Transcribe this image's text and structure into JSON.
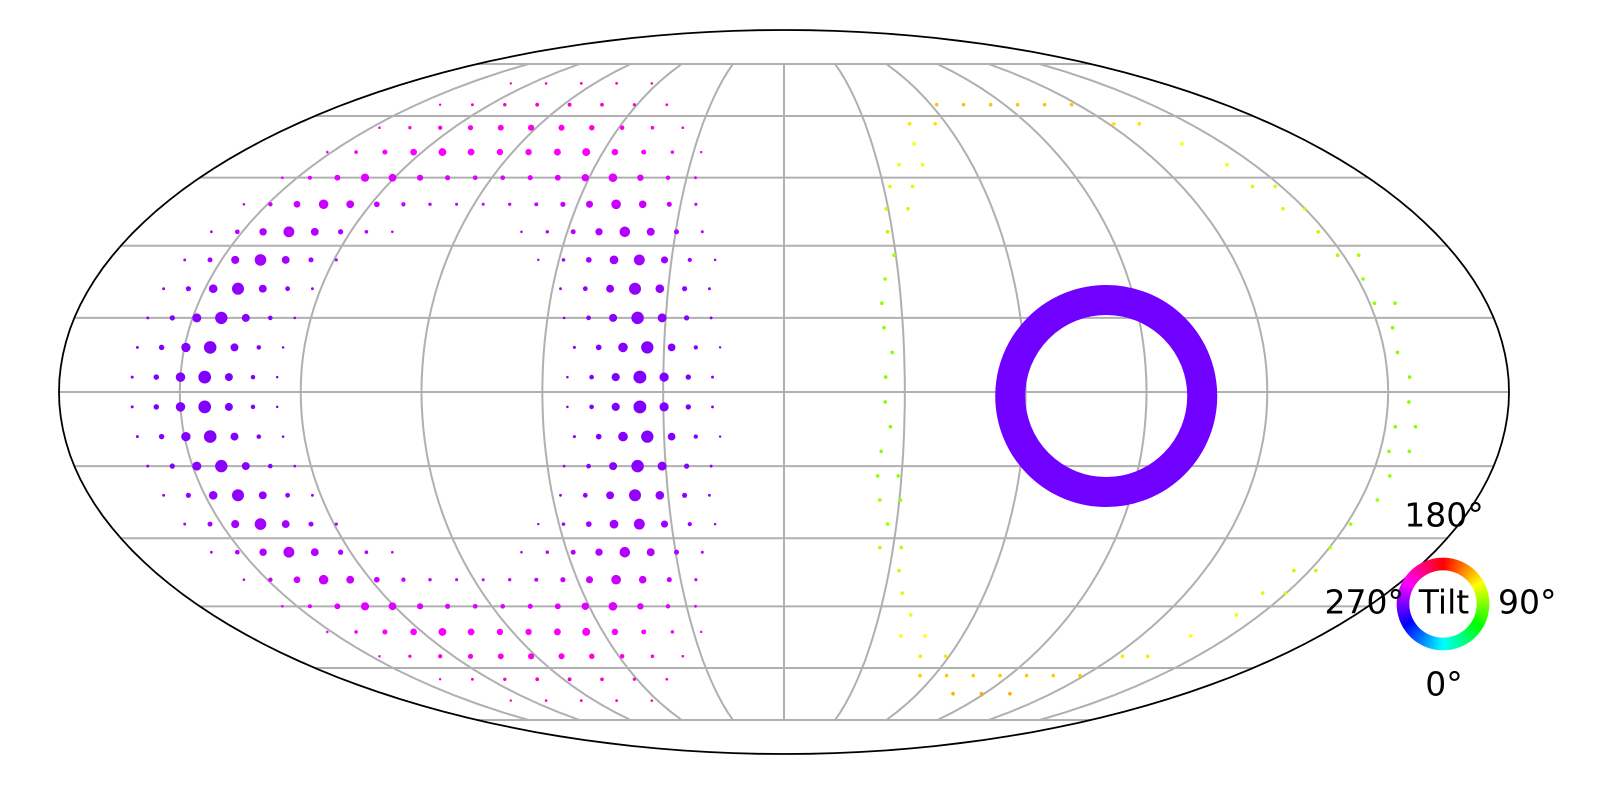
{
  "chart_data": {
    "type": "scatter",
    "projection": "mollweide",
    "grid": true,
    "parallels_deg": [
      -75,
      -60,
      -45,
      -30,
      -15,
      0,
      15,
      30,
      45,
      60,
      75
    ],
    "meridians_deg": [
      -150,
      -120,
      -90,
      -60,
      -30,
      0,
      30,
      60,
      90,
      120,
      150
    ],
    "hue_scale": "cyclic hsv (0° cyan, 90° blue/violet, 180° red, 270° yellow)",
    "series": [
      {
        "label_on_chart": "",
        "center_lon_deg": -90,
        "center_lat_deg": 0,
        "ring_radius_deg": 55,
        "band_halfwidth_deg": 20,
        "peak_hue_deg": 270,
        "color_at_peak": "#66ff00",
        "size_profile": "largest dots on the ring near the equator"
      },
      {
        "label_on_chart": "",
        "center_lon_deg": 90,
        "center_lat_deg": 0,
        "ring_radius_deg": 65,
        "band_halfwidth_deg": 3,
        "peak_hue_deg": 90,
        "color_at_peak": "#6a00ff",
        "size_profile": "small uniform dots"
      }
    ],
    "highlight_ring": {
      "center_lon_deg": 80,
      "center_lat_deg": 0,
      "color": "#7000ff"
    },
    "legend": {
      "title": "Tilt",
      "top_label": "180°",
      "right_label": "90°",
      "bottom_label": "0°",
      "left_label": "270°",
      "placement": "bottom-right"
    }
  }
}
